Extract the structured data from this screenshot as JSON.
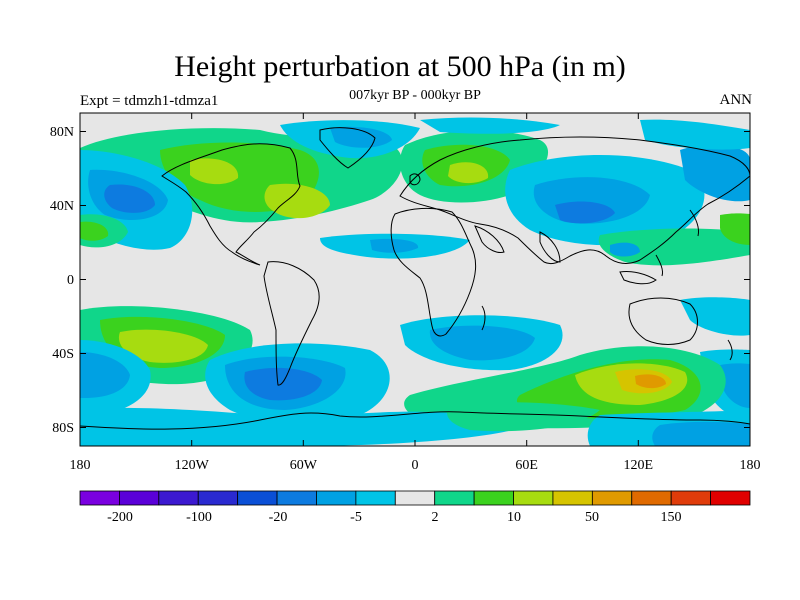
{
  "title": "Height perturbation at 500 hPa (in m)",
  "subtitle": "007kyr BP - 000kyr BP",
  "left_label": "Expt = tdmzh1-tdmza1",
  "right_label": "ANN",
  "map": {
    "projection": "cylindrical equidistant",
    "lon_range": [
      -180,
      180
    ],
    "lat_range": [
      -90,
      90
    ],
    "background_color": "#e6e6e6"
  },
  "x_ticks": [
    "180",
    "120W",
    "60W",
    "0",
    "60E",
    "120E",
    "180"
  ],
  "y_ticks": [
    "80N",
    "40N",
    "0",
    "40S",
    "80S"
  ],
  "colorbar": {
    "colors": [
      "#7a00e0",
      "#5a00d8",
      "#3c19d0",
      "#2a2ad0",
      "#0a4fd6",
      "#0d7be0",
      "#00a1e3",
      "#00c4e6",
      "#e6e6e6",
      "#10d68a",
      "#3bd21e",
      "#a7dc10",
      "#d6c400",
      "#e09a00",
      "#e06a00",
      "#e03c0a",
      "#e00000"
    ],
    "labels": [
      "-200",
      "-100",
      "-20",
      "-5",
      "2",
      "10",
      "50",
      "150"
    ]
  },
  "chart_data": {
    "type": "heatmap",
    "title": "Height perturbation at 500 hPa (in m)",
    "subtitle": "007kyr BP - 000kyr BP",
    "xlabel": "",
    "ylabel": "",
    "x_range": [
      -180,
      180
    ],
    "y_range": [
      -90,
      90
    ],
    "colorbar_levels": [
      -200,
      -100,
      -20,
      -5,
      2,
      10,
      50,
      150
    ],
    "features": [
      {
        "region": "North America / North Atlantic 40-70N",
        "value": 30
      },
      {
        "region": "Europe 50-70N",
        "value": 25
      },
      {
        "region": "North Pacific 30-50N",
        "value": -10
      },
      {
        "region": "Central Asia 30-50N",
        "value": -10
      },
      {
        "region": "South Pacific 30-50S",
        "value": 30
      },
      {
        "region": "South Pacific 40-60S (off South America)",
        "value": -10
      },
      {
        "region": "Indian Ocean / Australia 40-60S",
        "value": 45
      },
      {
        "region": "Antarctica coast",
        "value": 10
      }
    ]
  }
}
